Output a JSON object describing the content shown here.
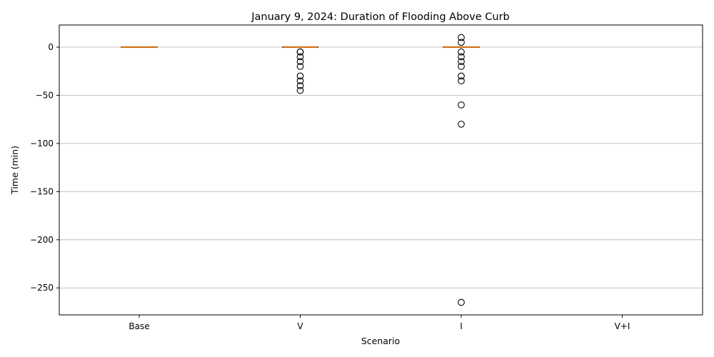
{
  "chart_data": {
    "type": "box",
    "title": "January 9, 2024: Duration of Flooding Above Curb",
    "xlabel": "Scenario",
    "ylabel": "Time (min)",
    "categories": [
      "Base",
      "V",
      "I",
      "V+I"
    ],
    "ylim": [
      -278,
      23
    ],
    "yticks": [
      0,
      -50,
      -100,
      -150,
      -200,
      -250
    ],
    "ytick_labels": [
      "0",
      "−50",
      "−100",
      "−150",
      "−200",
      "−250"
    ],
    "grid": "horizontal",
    "boxes": [
      {
        "category": "Base",
        "q1": 0,
        "median": 0,
        "q3": 0,
        "whisker_low": 0,
        "whisker_high": 0,
        "outliers": []
      },
      {
        "category": "V",
        "q1": 0,
        "median": 0,
        "q3": 0,
        "whisker_low": 0,
        "whisker_high": 0,
        "outliers": [
          -5,
          -5,
          -10,
          -15,
          -20,
          -30,
          -35,
          -40,
          -45
        ]
      },
      {
        "category": "I",
        "q1": 0,
        "median": 0,
        "q3": 0,
        "whisker_low": 0,
        "whisker_high": 0,
        "outliers": [
          10,
          5,
          -5,
          -10,
          -15,
          -20,
          -30,
          -35,
          -60,
          -80,
          -265
        ]
      },
      {
        "category": "V+I",
        "q1": null,
        "median": null,
        "q3": null,
        "whisker_low": null,
        "whisker_high": null,
        "outliers": []
      }
    ],
    "colors": {
      "median": "#ff7f0e",
      "box": "#000000",
      "grid": "#b0b0b0"
    }
  }
}
